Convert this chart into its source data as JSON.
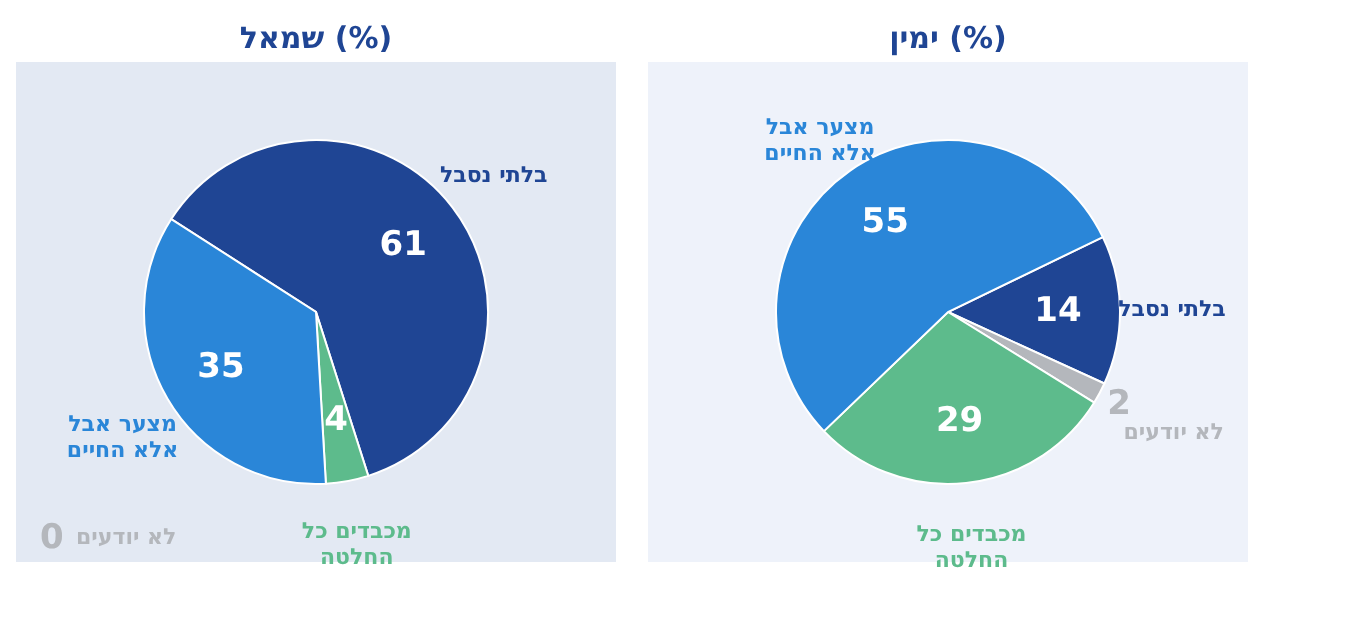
{
  "chart_data": [
    {
      "type": "pie",
      "title": "שמאל (%)",
      "categories": [
        "בלתי נסבל",
        "מכבדים כל החלטה",
        "מצער אבל אלא החיים",
        "לא יודעים"
      ],
      "values": [
        61,
        4,
        35,
        0
      ],
      "colors": [
        "#1f4594",
        "#5dbb8c",
        "#2a86d8",
        "#b4b7bc"
      ],
      "data_labels": true,
      "value_labels": [
        "61",
        "4",
        "35",
        "0"
      ]
    },
    {
      "type": "pie",
      "title": "ימין (%)",
      "categories": [
        "בלתי נסבל",
        "לא יודעים",
        "מכבדים כל החלטה",
        "מצער אבל אלא החיים"
      ],
      "values": [
        14,
        2,
        29,
        55
      ],
      "colors": [
        "#1f4594",
        "#b4b7bc",
        "#5dbb8c",
        "#2a86d8"
      ],
      "data_labels": true
    }
  ]
}
